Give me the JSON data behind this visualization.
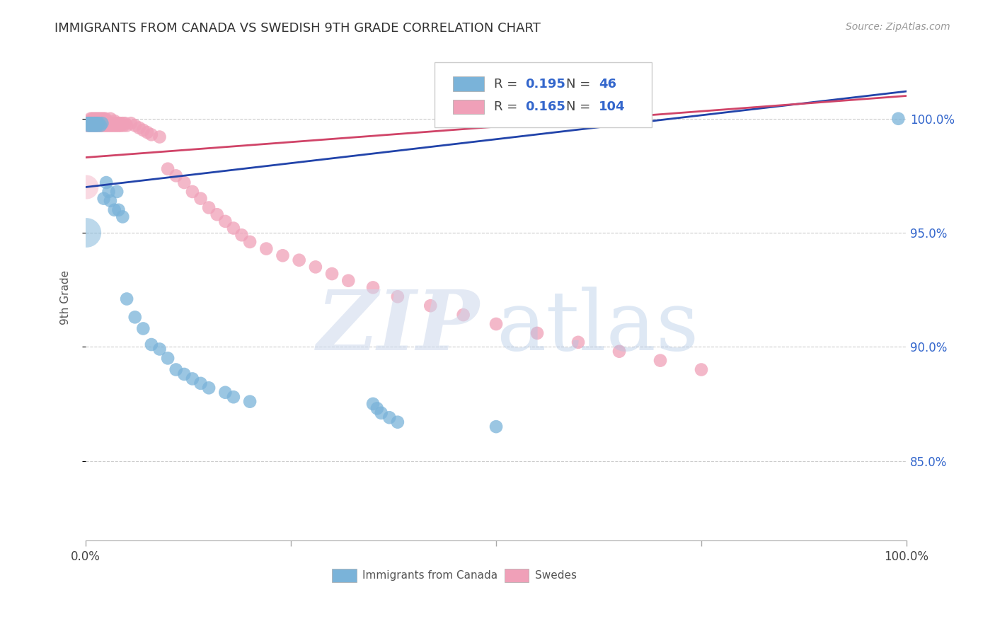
{
  "title": "IMMIGRANTS FROM CANADA VS SWEDISH 9TH GRADE CORRELATION CHART",
  "source": "Source: ZipAtlas.com",
  "ylabel": "9th Grade",
  "blue_color": "#7ab3d9",
  "pink_color": "#f0a0b8",
  "blue_line_color": "#2244aa",
  "pink_line_color": "#d04468",
  "legend_blue_r": "0.195",
  "legend_blue_n": "46",
  "legend_pink_r": "0.165",
  "legend_pink_n": "104",
  "xlim": [
    0.0,
    1.0
  ],
  "ylim_min": 0.815,
  "ylim_max": 1.028,
  "yticks": [
    0.85,
    0.9,
    0.95,
    1.0
  ],
  "ytick_labels": [
    "85.0%",
    "90.0%",
    "95.0%",
    "100.0%"
  ],
  "blue_x": [
    0.002,
    0.003,
    0.004,
    0.005,
    0.006,
    0.007,
    0.008,
    0.009,
    0.01,
    0.011,
    0.012,
    0.013,
    0.014,
    0.015,
    0.016,
    0.018,
    0.02,
    0.022,
    0.025,
    0.028,
    0.03,
    0.035,
    0.038,
    0.04,
    0.045,
    0.05,
    0.06,
    0.07,
    0.08,
    0.09,
    0.1,
    0.11,
    0.12,
    0.13,
    0.14,
    0.15,
    0.17,
    0.18,
    0.2,
    0.35,
    0.355,
    0.36,
    0.37,
    0.38,
    0.5,
    0.99
  ],
  "blue_y": [
    0.998,
    0.997,
    0.998,
    0.997,
    0.998,
    0.997,
    0.998,
    0.997,
    0.998,
    0.997,
    0.998,
    0.997,
    0.998,
    0.997,
    0.998,
    0.997,
    0.998,
    0.965,
    0.972,
    0.968,
    0.964,
    0.96,
    0.968,
    0.96,
    0.957,
    0.921,
    0.913,
    0.908,
    0.901,
    0.899,
    0.895,
    0.89,
    0.888,
    0.886,
    0.884,
    0.882,
    0.88,
    0.878,
    0.876,
    0.875,
    0.873,
    0.871,
    0.869,
    0.867,
    0.865,
    1.0
  ],
  "pink_x": [
    0.001,
    0.002,
    0.003,
    0.004,
    0.005,
    0.005,
    0.006,
    0.006,
    0.007,
    0.007,
    0.008,
    0.008,
    0.009,
    0.009,
    0.01,
    0.01,
    0.011,
    0.011,
    0.012,
    0.012,
    0.013,
    0.013,
    0.014,
    0.014,
    0.015,
    0.015,
    0.016,
    0.016,
    0.017,
    0.017,
    0.018,
    0.018,
    0.019,
    0.019,
    0.02,
    0.02,
    0.021,
    0.021,
    0.022,
    0.022,
    0.023,
    0.023,
    0.024,
    0.024,
    0.025,
    0.025,
    0.026,
    0.027,
    0.028,
    0.029,
    0.03,
    0.03,
    0.031,
    0.032,
    0.033,
    0.034,
    0.035,
    0.035,
    0.036,
    0.037,
    0.038,
    0.039,
    0.04,
    0.041,
    0.042,
    0.043,
    0.045,
    0.046,
    0.048,
    0.05,
    0.055,
    0.06,
    0.065,
    0.07,
    0.075,
    0.08,
    0.09,
    0.1,
    0.11,
    0.12,
    0.13,
    0.14,
    0.15,
    0.16,
    0.17,
    0.18,
    0.19,
    0.2,
    0.22,
    0.24,
    0.26,
    0.28,
    0.3,
    0.32,
    0.35,
    0.38,
    0.42,
    0.46,
    0.5,
    0.55,
    0.6,
    0.65,
    0.7,
    0.75
  ],
  "pink_y": [
    0.997,
    0.998,
    0.997,
    0.998,
    0.997,
    0.999,
    0.998,
    1.0,
    0.997,
    0.999,
    0.998,
    1.0,
    0.997,
    0.999,
    0.998,
    1.0,
    0.997,
    0.999,
    0.998,
    1.0,
    0.997,
    0.999,
    0.998,
    1.0,
    0.997,
    0.999,
    0.998,
    1.0,
    0.997,
    0.999,
    0.998,
    1.0,
    0.997,
    0.999,
    0.998,
    1.0,
    0.997,
    0.999,
    0.998,
    1.0,
    0.997,
    0.999,
    0.998,
    1.0,
    0.997,
    0.999,
    0.998,
    0.997,
    0.998,
    0.997,
    0.998,
    1.0,
    0.997,
    0.998,
    0.997,
    0.998,
    0.997,
    0.999,
    0.998,
    0.997,
    0.998,
    0.997,
    0.998,
    0.997,
    0.998,
    0.997,
    0.998,
    0.997,
    0.998,
    0.997,
    0.998,
    0.997,
    0.996,
    0.995,
    0.994,
    0.993,
    0.992,
    0.978,
    0.975,
    0.972,
    0.968,
    0.965,
    0.961,
    0.958,
    0.955,
    0.952,
    0.949,
    0.946,
    0.943,
    0.94,
    0.938,
    0.935,
    0.932,
    0.929,
    0.926,
    0.922,
    0.918,
    0.914,
    0.91,
    0.906,
    0.902,
    0.898,
    0.894,
    0.89
  ],
  "blue_line_x0": 0.0,
  "blue_line_y0": 0.97,
  "blue_line_x1": 1.0,
  "blue_line_y1": 1.012,
  "pink_line_x0": 0.0,
  "pink_line_y0": 0.983,
  "pink_line_x1": 1.0,
  "pink_line_y1": 1.01,
  "grid_color": "#cccccc",
  "grid_style": "--",
  "background_color": "#ffffff"
}
